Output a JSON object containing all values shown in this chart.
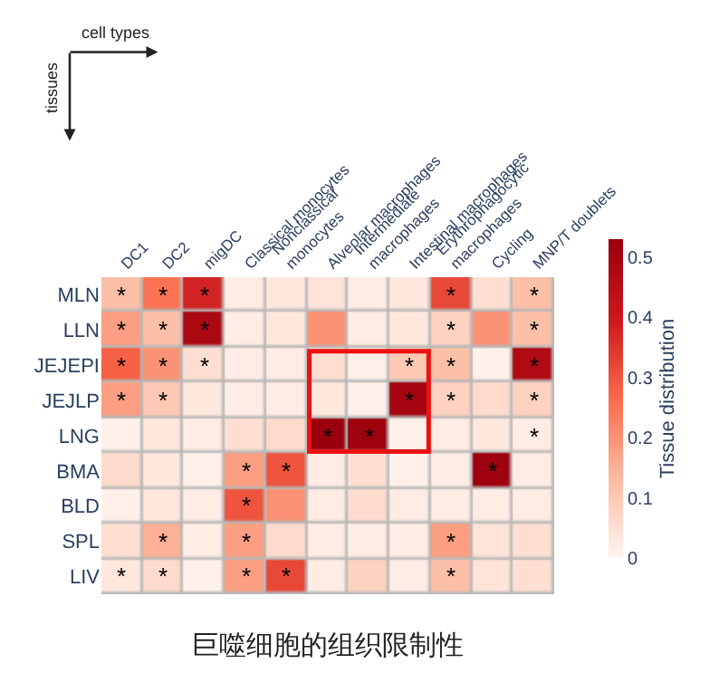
{
  "chart_data": {
    "type": "heatmap",
    "categories": [
      "DC1",
      "DC2",
      "migDC",
      "Classical monocytes",
      "Nonclassical\nmonocytes",
      "Alveolar macrophages",
      "Intermediate\nmacrophages",
      "Intestinal macrophages",
      "Erythrophagocytic\nmacrophages",
      "Cycling",
      "MNP/T doublets"
    ],
    "y_categories": [
      "MLN",
      "LLN",
      "JEJEPI",
      "JEJLP",
      "LNG",
      "BMA",
      "BLD",
      "SPL",
      "LIV"
    ],
    "cells": [
      [
        0.12,
        0.25,
        0.38,
        0.02,
        0.03,
        0.04,
        0.02,
        0.03,
        0.32,
        0.05,
        0.12
      ],
      [
        0.18,
        0.12,
        0.48,
        0.02,
        0.03,
        0.2,
        0.02,
        0.03,
        0.08,
        0.2,
        0.12
      ],
      [
        0.28,
        0.2,
        0.05,
        0.02,
        0.02,
        0.05,
        0.01,
        0.1,
        0.12,
        0.01,
        0.47
      ],
      [
        0.18,
        0.1,
        0.03,
        0.02,
        0.02,
        0.03,
        0.01,
        0.5,
        0.08,
        0.06,
        0.08
      ],
      [
        0.01,
        0.03,
        0.02,
        0.05,
        0.06,
        0.53,
        0.52,
        0.01,
        0.02,
        0.03,
        0.02
      ],
      [
        0.06,
        0.03,
        0.01,
        0.18,
        0.3,
        0.02,
        0.05,
        0.01,
        0.02,
        0.52,
        0.02
      ],
      [
        0.01,
        0.03,
        0.02,
        0.3,
        0.2,
        0.02,
        0.06,
        0.02,
        0.02,
        0.02,
        0.02
      ],
      [
        0.05,
        0.15,
        0.02,
        0.18,
        0.06,
        0.02,
        0.02,
        0.02,
        0.18,
        0.04,
        0.05
      ],
      [
        0.03,
        0.06,
        0.01,
        0.18,
        0.32,
        0.02,
        0.08,
        0.02,
        0.12,
        0.04,
        0.05
      ]
    ],
    "cell_labels": [
      [
        "*",
        "*",
        "*",
        null,
        null,
        null,
        null,
        null,
        "*",
        null,
        "*"
      ],
      [
        "*",
        "*",
        "*",
        null,
        null,
        null,
        null,
        null,
        "*",
        null,
        "*"
      ],
      [
        "*",
        "*",
        "*",
        null,
        null,
        null,
        null,
        "*",
        "*",
        null,
        "*"
      ],
      [
        "*",
        "*",
        null,
        null,
        null,
        null,
        null,
        "*",
        "*",
        null,
        "*"
      ],
      [
        null,
        null,
        null,
        null,
        null,
        "*",
        "*",
        null,
        null,
        null,
        "*"
      ],
      [
        null,
        null,
        null,
        "*",
        "*",
        null,
        null,
        null,
        null,
        "*",
        null
      ],
      [
        null,
        null,
        null,
        "*",
        null,
        null,
        null,
        null,
        null,
        null,
        null
      ],
      [
        null,
        "*",
        null,
        "*",
        null,
        null,
        null,
        null,
        "*",
        null,
        null
      ],
      [
        "*",
        "*",
        null,
        "*",
        "*",
        null,
        null,
        null,
        "*",
        null,
        null
      ]
    ],
    "clim": [
      0,
      0.53
    ],
    "cticks": [
      0,
      0.1,
      0.2,
      0.3,
      0.4,
      0.5
    ],
    "clabel": "Tissue distribution",
    "annotations": [
      "cell types",
      "tissues",
      "巨噬细胞的组织限制性"
    ]
  }
}
